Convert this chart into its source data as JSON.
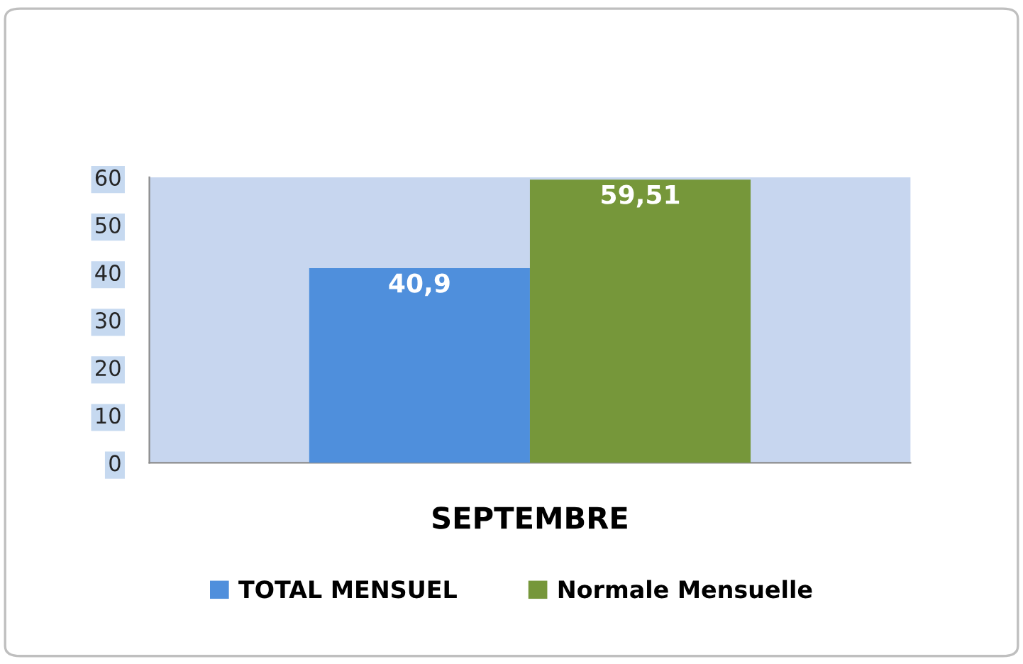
{
  "chart_data": {
    "type": "bar",
    "categories": [
      "SEPTEMBRE"
    ],
    "series": [
      {
        "name": "TOTAL MENSUEL",
        "color": "#4f8fdc",
        "values": [
          40.9
        ],
        "value_labels": [
          "40,9"
        ]
      },
      {
        "name": "Normale Mensuelle",
        "color": "#76973a",
        "values": [
          59.51
        ],
        "value_labels": [
          "59,51"
        ]
      }
    ],
    "ylim": [
      0,
      60
    ],
    "yticks": [
      0,
      10,
      20,
      30,
      40,
      50,
      60
    ],
    "legend": "bottom"
  }
}
